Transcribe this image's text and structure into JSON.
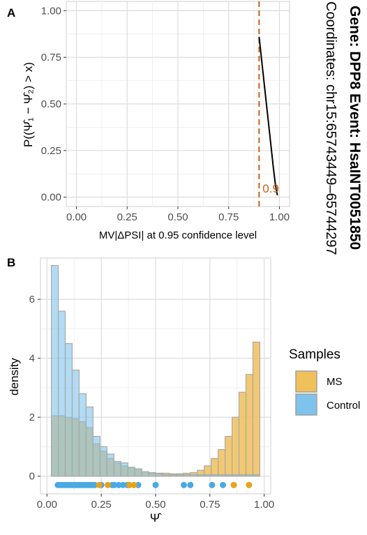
{
  "figure": {
    "side_title": "Gene: DPP8  Event: HsaINT0051850",
    "side_subtitle": "Coordinates: chr15:65743449–65744297"
  },
  "chart_data": [
    {
      "panel": "A",
      "type": "line",
      "ylabel": "P((Ψ̂₁ − Ψ̂₂) > x)",
      "xlabel": "MV|ΔPSI| at 0.95 confidence level",
      "xlim": [
        -0.05,
        1.05
      ],
      "ylim": [
        -0.05,
        1.05
      ],
      "x_ticks": [
        "0.00",
        "0.25",
        "0.50",
        "0.75",
        "1.00"
      ],
      "y_ticks": [
        "0.00",
        "0.25",
        "0.50",
        "0.75",
        "1.00"
      ],
      "x_tick_values": [
        0,
        0.25,
        0.5,
        0.75,
        1
      ],
      "y_tick_values": [
        0,
        0.25,
        0.5,
        0.75,
        1
      ],
      "grid": true,
      "series": [
        {
          "x": [
            0.9,
            0.91,
            0.92,
            0.93,
            0.94,
            0.95,
            0.96,
            0.97,
            0.98,
            0.99
          ],
          "y": [
            0.86,
            0.76,
            0.66,
            0.56,
            0.46,
            0.36,
            0.26,
            0.16,
            0.07,
            0.01
          ],
          "color": "#000000"
        }
      ],
      "vline": {
        "x": 0.9,
        "color": "#c4601a",
        "style": "dashed"
      },
      "annotation": {
        "text": "0.9",
        "x": 0.91,
        "y": 0.01,
        "color": "#c4601a"
      }
    },
    {
      "panel": "B",
      "type": "histogram",
      "ylabel": "density",
      "xlabel": "Ψ̂",
      "xlim": [
        -0.03,
        1.03
      ],
      "ylim": [
        -0.6,
        7.4
      ],
      "x_ticks": [
        "0.00",
        "0.25",
        "0.50",
        "0.75",
        "1.00"
      ],
      "y_ticks": [
        "0",
        "2",
        "4",
        "6"
      ],
      "x_tick_values": [
        0,
        0.25,
        0.5,
        0.75,
        1
      ],
      "y_tick_values": [
        0,
        2,
        4,
        6
      ],
      "grid": true,
      "bin_edges": [
        0.02,
        0.052,
        0.084,
        0.116,
        0.148,
        0.18,
        0.212,
        0.244,
        0.276,
        0.308,
        0.34,
        0.372,
        0.404,
        0.436,
        0.468,
        0.5,
        0.532,
        0.564,
        0.596,
        0.628,
        0.66,
        0.692,
        0.724,
        0.756,
        0.788,
        0.82,
        0.852,
        0.884,
        0.916,
        0.948,
        0.98
      ],
      "legend": {
        "title": "Samples",
        "position": "right"
      },
      "series": [
        {
          "name": "MS",
          "color": "#f0c05a",
          "values": [
            2.05,
            2.05,
            2.0,
            1.95,
            1.85,
            1.65,
            1.1,
            0.85,
            0.6,
            0.45,
            0.35,
            0.3,
            0.25,
            0.15,
            0.12,
            0.1,
            0.1,
            0.08,
            0.08,
            0.1,
            0.12,
            0.2,
            0.35,
            0.6,
            0.9,
            1.35,
            2.0,
            2.85,
            3.45,
            4.55
          ]
        },
        {
          "name": "Control",
          "color": "#7fc3ec",
          "values": [
            7.15,
            5.6,
            4.5,
            3.6,
            2.8,
            2.35,
            1.35,
            1.0,
            0.75,
            0.5,
            0.45,
            0.3,
            0.25,
            0.15,
            0.1,
            0.08,
            0.05,
            0.05,
            0.05,
            0.05,
            0.05,
            0.05,
            0.05,
            0.05,
            0.05,
            0.05,
            0.05,
            0.05,
            0.05,
            0.05
          ]
        }
      ],
      "rug": {
        "y": -0.3,
        "Control": [
          0.05,
          0.06,
          0.07,
          0.08,
          0.09,
          0.1,
          0.11,
          0.12,
          0.13,
          0.14,
          0.15,
          0.16,
          0.17,
          0.18,
          0.19,
          0.2,
          0.21,
          0.22,
          0.25,
          0.3,
          0.31,
          0.33,
          0.35,
          0.37,
          0.42,
          0.5,
          0.63,
          0.66,
          0.76,
          0.81
        ],
        "MS": [
          0.24,
          0.28,
          0.38,
          0.4,
          0.86,
          0.93
        ]
      }
    }
  ]
}
